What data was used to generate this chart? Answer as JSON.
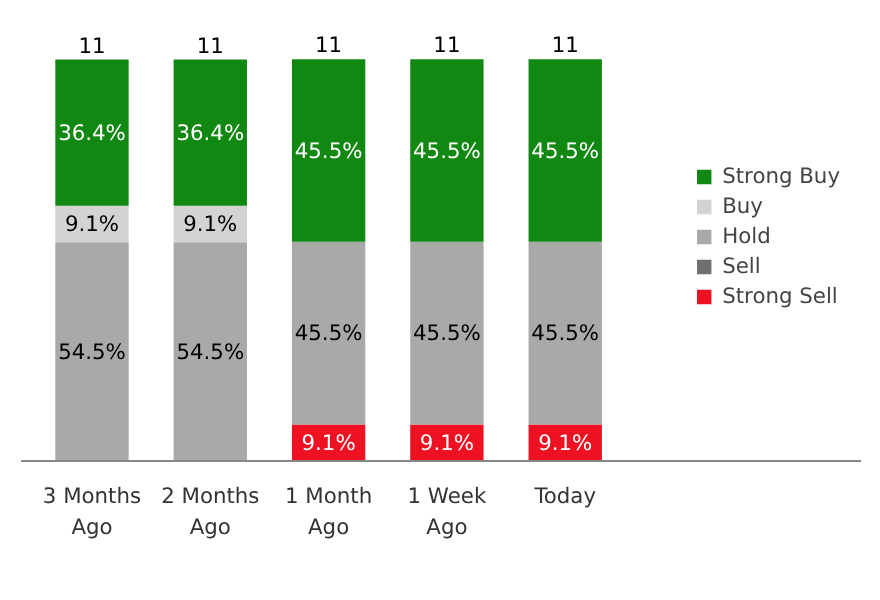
{
  "chart_data": {
    "type": "bar",
    "stacked": true,
    "legend": "right",
    "tick_labels": "x",
    "categories": [
      "3 Months Ago",
      "2 Months Ago",
      "1 Month Ago",
      "1 Week Ago",
      "Today"
    ],
    "series": [
      {
        "name": "Strong Sell",
        "color": "#ee1122",
        "values": [
          0,
          0,
          9.1,
          9.1,
          9.1
        ],
        "value_labels": [
          null,
          null,
          "9.1%",
          "9.1%",
          "9.1%"
        ]
      },
      {
        "name": "Sell",
        "color": "#707070",
        "values": [
          0,
          0,
          0,
          0,
          0
        ],
        "value_labels": [
          null,
          null,
          null,
          null,
          null
        ]
      },
      {
        "name": "Hold",
        "color": "#a9a9a9",
        "values": [
          54.5,
          54.5,
          45.5,
          45.5,
          45.5
        ],
        "value_labels": [
          "54.5%",
          "54.5%",
          "45.5%",
          "45.5%",
          "45.5%"
        ]
      },
      {
        "name": "Buy",
        "color": "#d3d3d3",
        "values": [
          9.1,
          9.1,
          0,
          0,
          0
        ],
        "value_labels": [
          "9.1%",
          "9.1%",
          null,
          null,
          null
        ]
      },
      {
        "name": "Strong Buy",
        "color": "#118811",
        "values": [
          36.4,
          36.4,
          45.5,
          45.5,
          45.5
        ],
        "value_labels": [
          "36.4%",
          "36.4%",
          "45.5%",
          "45.5%",
          "45.5%"
        ]
      }
    ],
    "annotations": [
      "11",
      "11",
      "11",
      "11",
      "11"
    ]
  }
}
